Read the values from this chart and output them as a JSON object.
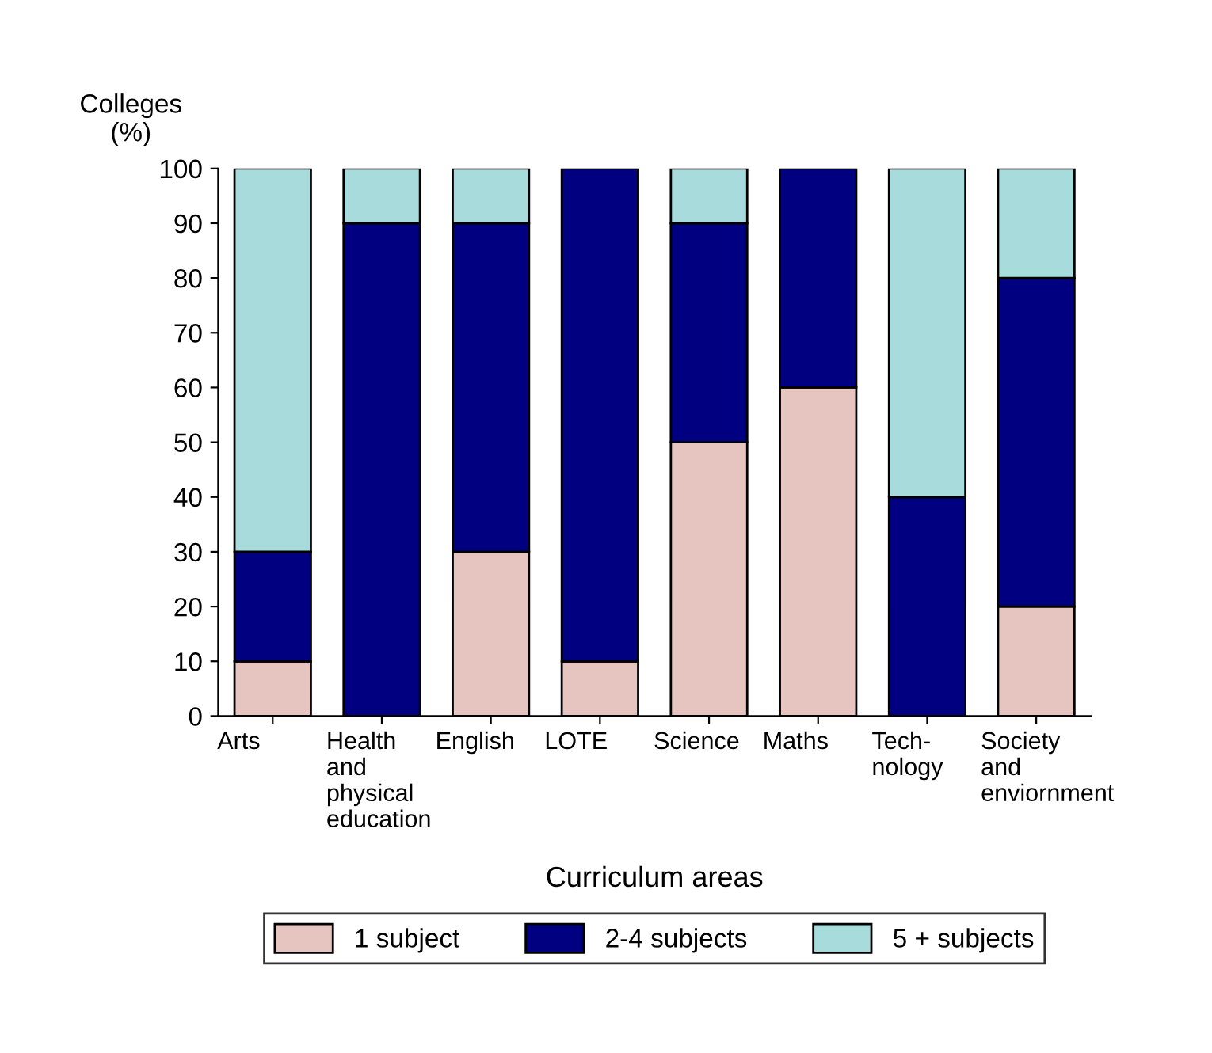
{
  "chart_data": {
    "type": "bar",
    "stacked": true,
    "categories": [
      "Arts",
      "Health\nand\nphysical\neducation",
      "English",
      "LOTE",
      "Science",
      "Maths",
      "Tech-\nnology",
      "Society\nand\nenviornment"
    ],
    "series": [
      {
        "name": "1 subject",
        "color": "#e6c4c0",
        "values": [
          10,
          0,
          30,
          10,
          50,
          60,
          0,
          20
        ]
      },
      {
        "name": "2-4 subjects",
        "color": "#000080",
        "values": [
          20,
          90,
          60,
          90,
          40,
          40,
          40,
          60
        ]
      },
      {
        "name": "5 + subjects",
        "color": "#a8dcdc",
        "values": [
          70,
          10,
          10,
          0,
          10,
          0,
          60,
          20
        ]
      }
    ],
    "ylabel": "Colleges\n(%)",
    "xlabel": "Curriculum areas",
    "ylim": [
      0,
      100
    ],
    "yticks": [
      0,
      10,
      20,
      30,
      40,
      50,
      60,
      70,
      80,
      90,
      100
    ],
    "legend": "bottom",
    "grid": false
  }
}
